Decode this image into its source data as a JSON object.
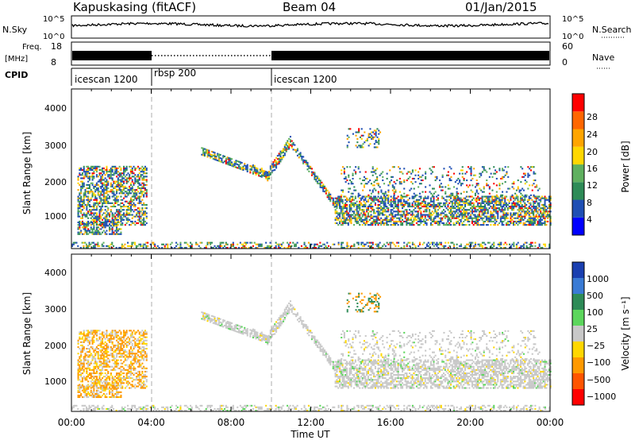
{
  "header": {
    "title": "Kapuskasing (fitACF)",
    "beam": "Beam 04",
    "date": "01/Jan/2015"
  },
  "nsky_panel": {
    "left_label": "N.Sky",
    "left_ticks": [
      "10^5",
      "10^0"
    ],
    "right_ticks": [
      "10^5",
      "10^0"
    ],
    "right_label": "N.Search"
  },
  "freq_panel": {
    "left_label_line1": "Freq.",
    "left_label_line2": "[MHz]",
    "left_ticks": [
      "18",
      "8"
    ],
    "right_ticks": [
      "60",
      "0"
    ],
    "right_label": "Nave"
  },
  "cpid_panel": {
    "label": "CPID",
    "segments": [
      "icescan 1200",
      "rbsp 200",
      "icescan 1200"
    ]
  },
  "power_panel": {
    "ylabel": "Slant Range [km]",
    "yticks": [
      "4000",
      "3000",
      "2000",
      "1000"
    ],
    "colorbar_label": "Power [dB]",
    "colorbar_ticks": [
      "28",
      "24",
      "20",
      "16",
      "12",
      "8",
      "4"
    ]
  },
  "velocity_panel": {
    "ylabel": "Slant Range [km]",
    "yticks": [
      "4000",
      "3000",
      "2000",
      "1000"
    ],
    "colorbar_label": "Velocity [m s⁻¹]",
    "colorbar_ticks": [
      "1000",
      "500",
      "100",
      "25",
      "−25",
      "−100",
      "−500",
      "−1000"
    ]
  },
  "xaxis": {
    "label": "Time UT",
    "ticks": [
      "00:00",
      "04:00",
      "08:00",
      "12:00",
      "16:00",
      "20:00",
      "00:00"
    ]
  },
  "colors": {
    "power_scale": [
      "#0000ff",
      "#1f4fb4",
      "#2e8b57",
      "#5fb05f",
      "#ffd700",
      "#ffa500",
      "#ff6600",
      "#ff0000"
    ],
    "velocity_scale": [
      "#1a3fb0",
      "#3a7bd5",
      "#2e8b57",
      "#5cd65c",
      "#c8c8c8",
      "#ffd700",
      "#ff9900",
      "#ff5500",
      "#ff0000"
    ]
  },
  "chart_data": [
    {
      "type": "line",
      "name": "N.Sky",
      "x_range_hours": [
        0,
        24
      ],
      "yscale": "log"
    },
    {
      "type": "line",
      "name": "Freq",
      "x_range_hours": [
        0,
        24
      ],
      "ylim": [
        8,
        18
      ],
      "segments": [
        {
          "start_h": 0,
          "end_h": 4,
          "style": "solid-band"
        },
        {
          "start_h": 4,
          "end_h": 10,
          "style": "dotted"
        },
        {
          "start_h": 10,
          "end_h": 24,
          "style": "solid-band"
        }
      ]
    },
    {
      "type": "heatmap",
      "quantity": "Power",
      "unit": "dB",
      "x_range_hours": [
        0,
        24
      ],
      "ylim_km": [
        180,
        4500
      ],
      "colorbar_range": [
        0,
        30
      ]
    },
    {
      "type": "heatmap",
      "quantity": "Velocity",
      "unit": "m s-1",
      "x_range_hours": [
        0,
        24
      ],
      "ylim_km": [
        180,
        4500
      ],
      "colorbar_range": [
        -1000,
        1000
      ]
    }
  ]
}
